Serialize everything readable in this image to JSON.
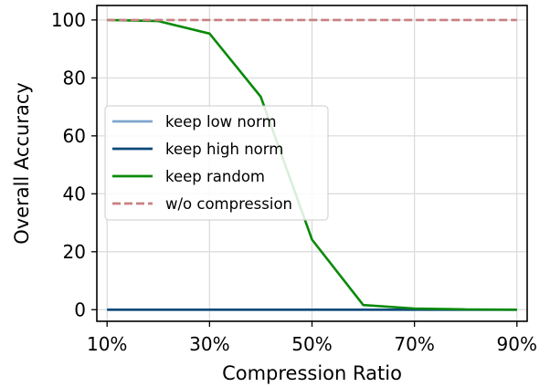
{
  "chart_data": {
    "type": "line",
    "title": "",
    "xlabel": "Compression Ratio",
    "ylabel": "Overall Accuracy",
    "x_ticks": [
      "10%",
      "30%",
      "50%",
      "70%",
      "90%"
    ],
    "x_tick_values": [
      10,
      30,
      50,
      70,
      90
    ],
    "y_ticks": [
      "0",
      "20",
      "40",
      "60",
      "80",
      "100"
    ],
    "y_tick_values": [
      0,
      20,
      40,
      60,
      80,
      100
    ],
    "xlim": [
      8,
      92
    ],
    "ylim": [
      -4,
      105
    ],
    "grid": true,
    "legend_position": "center-left",
    "x": [
      10,
      20,
      30,
      40,
      50,
      60,
      70,
      80,
      90
    ],
    "series": [
      {
        "name": "keep low norm",
        "color": "#7ea6cf",
        "style": "solid",
        "values": [
          0,
          0,
          0,
          0,
          0,
          0,
          0,
          0,
          0
        ]
      },
      {
        "name": "keep high norm",
        "color": "#0d4a7a",
        "style": "solid",
        "values": [
          0,
          0,
          0,
          0,
          0,
          0,
          0,
          0,
          0
        ]
      },
      {
        "name": "keep random",
        "color": "#0a8a0a",
        "style": "solid",
        "values": [
          100,
          99.6,
          95.3,
          73.5,
          24.2,
          1.6,
          0.4,
          0.1,
          0.0
        ]
      },
      {
        "name": "w/o compression",
        "color": "#c98080",
        "style": "dashed",
        "values": [
          100,
          100,
          100,
          100,
          100,
          100,
          100,
          100,
          100
        ]
      }
    ]
  }
}
